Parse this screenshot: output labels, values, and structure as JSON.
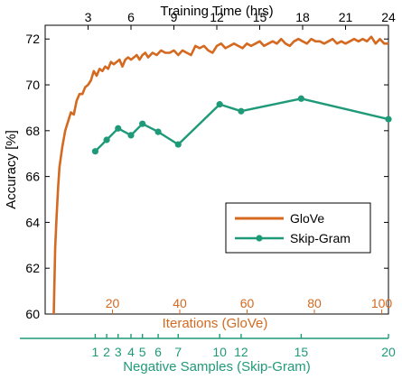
{
  "colors": {
    "glove": "#d4691f",
    "skipgram": "#1f9a78",
    "axis": "#000000"
  },
  "chart_data": {
    "type": "line",
    "ylabel": "Accuracy [%]",
    "ylim": [
      60,
      72.6
    ],
    "y_ticks": [
      "60",
      "62",
      "64",
      "66",
      "68",
      "70",
      "72"
    ],
    "top_axis": {
      "label": "Training Time (hrs)",
      "range": [
        0,
        24
      ],
      "ticks": [
        "3",
        "6",
        "9",
        "12",
        "15",
        "18",
        "21",
        "24"
      ]
    },
    "iterations_axis": {
      "label": "Iterations (GloVe)",
      "range": [
        0,
        102
      ],
      "ticks": [
        "20",
        "40",
        "60",
        "80",
        "100"
      ]
    },
    "negative_axis": {
      "label": "Negative Samples (Skip-Gram)",
      "ticks": [
        "1",
        "2",
        "3",
        "4",
        "5",
        "6",
        "7",
        "10",
        "12",
        "15",
        "20"
      ]
    },
    "legend": {
      "position": "right",
      "entries": [
        "GloVe",
        "Skip-Gram"
      ]
    },
    "series": [
      {
        "name": "GloVe",
        "x_units": "hours",
        "x": [
          0.6,
          0.7,
          0.8,
          0.9,
          1.0,
          1.2,
          1.4,
          1.6,
          1.8,
          2.0,
          2.2,
          2.4,
          2.6,
          2.8,
          3.0,
          3.2,
          3.4,
          3.6,
          3.8,
          4.0,
          4.2,
          4.4,
          4.6,
          4.8,
          5.0,
          5.2,
          5.4,
          5.6,
          5.8,
          6.0,
          6.2,
          6.4,
          6.6,
          6.8,
          7.0,
          7.2,
          7.5,
          7.8,
          8.1,
          8.4,
          8.7,
          9.0,
          9.3,
          9.6,
          9.9,
          10.2,
          10.5,
          10.8,
          11.1,
          11.4,
          11.7,
          12.0,
          12.3,
          12.6,
          12.9,
          13.2,
          13.5,
          13.8,
          14.1,
          14.4,
          14.7,
          15.0,
          15.3,
          15.6,
          15.9,
          16.2,
          16.5,
          16.8,
          17.1,
          17.4,
          17.7,
          18.0,
          18.3,
          18.6,
          18.9,
          19.2,
          19.5,
          19.8,
          20.1,
          20.4,
          20.7,
          21.0,
          21.3,
          21.6,
          21.9,
          22.2,
          22.5,
          22.8,
          23.1,
          23.4,
          23.7,
          24.0
        ],
        "y": [
          60.0,
          62.9,
          64.3,
          65.5,
          66.4,
          67.3,
          68.0,
          68.4,
          68.8,
          68.7,
          69.3,
          69.6,
          69.6,
          69.9,
          70.0,
          70.2,
          70.6,
          70.4,
          70.7,
          70.6,
          70.8,
          70.7,
          71.0,
          70.9,
          71.0,
          71.1,
          70.8,
          71.1,
          71.2,
          71.1,
          71.2,
          71.3,
          71.1,
          71.3,
          71.4,
          71.2,
          71.4,
          71.3,
          71.5,
          71.4,
          71.4,
          71.5,
          71.3,
          71.5,
          71.4,
          71.3,
          71.7,
          71.6,
          71.7,
          71.5,
          71.4,
          71.7,
          71.8,
          71.6,
          71.7,
          71.8,
          71.7,
          71.6,
          71.8,
          71.7,
          71.8,
          71.9,
          71.7,
          71.8,
          71.9,
          71.8,
          72.0,
          71.8,
          71.7,
          71.9,
          72.0,
          71.9,
          71.8,
          72.0,
          71.9,
          71.9,
          71.8,
          71.9,
          72.0,
          71.8,
          71.9,
          71.8,
          71.9,
          72.0,
          71.9,
          72.0,
          71.9,
          72.1,
          71.8,
          72.0,
          71.8,
          71.8
        ]
      },
      {
        "name": "Skip-Gram",
        "negative_samples": [
          1,
          2,
          3,
          4,
          5,
          6,
          7,
          10,
          12,
          15,
          20
        ],
        "x_units": "hours",
        "x": [
          3.5,
          4.3,
          5.1,
          6.0,
          6.8,
          7.9,
          9.3,
          12.2,
          13.7,
          17.9,
          24.0
        ],
        "y": [
          67.1,
          67.6,
          68.1,
          67.8,
          68.3,
          67.95,
          67.4,
          69.15,
          68.85,
          69.4,
          68.5
        ]
      }
    ]
  }
}
